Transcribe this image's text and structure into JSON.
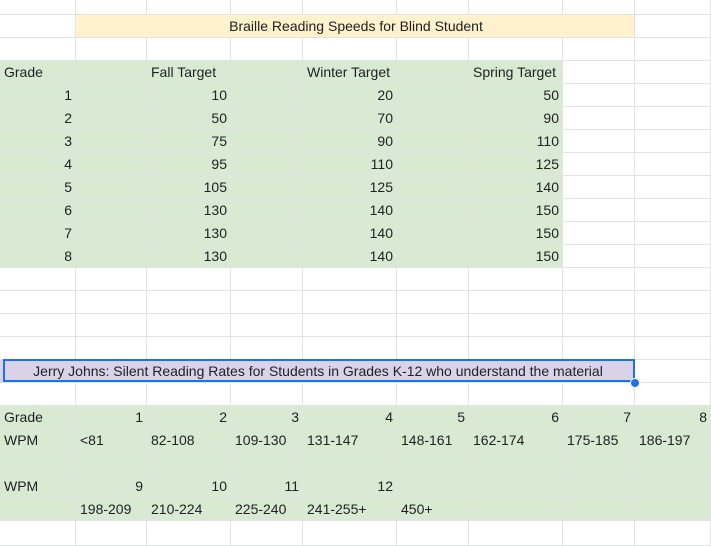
{
  "title1": "Braille Reading Speeds for Blind Student",
  "braille": {
    "headers": {
      "grade": "Grade",
      "fall": "Fall Target",
      "winter": "Winter Target",
      "spring": "Spring Target"
    },
    "rows": [
      {
        "grade": "1",
        "fall": "10",
        "winter": "20",
        "spring": "50"
      },
      {
        "grade": "2",
        "fall": "50",
        "winter": "70",
        "spring": "90"
      },
      {
        "grade": "3",
        "fall": "75",
        "winter": "90",
        "spring": "110"
      },
      {
        "grade": "4",
        "fall": "95",
        "winter": "110",
        "spring": "125"
      },
      {
        "grade": "5",
        "fall": "105",
        "winter": "125",
        "spring": "140"
      },
      {
        "grade": "6",
        "fall": "130",
        "winter": "140",
        "spring": "150"
      },
      {
        "grade": "7",
        "fall": "130",
        "winter": "140",
        "spring": "150"
      },
      {
        "grade": "8",
        "fall": "130",
        "winter": "140",
        "spring": "150"
      }
    ]
  },
  "title2": "Jerry Johns: Silent Reading Rates for Students in Grades K-12 who understand the material",
  "johns": {
    "row1": {
      "label": "Grade",
      "values": [
        "1",
        "2",
        "3",
        "4",
        "5",
        "6",
        "7",
        "8"
      ]
    },
    "row2": {
      "label": "WPM",
      "values": [
        "<81",
        "82-108",
        "109-130",
        "131-147",
        "148-161",
        "162-174",
        "175-185",
        "186-197"
      ]
    },
    "row3": {
      "label": "WPM",
      "values": [
        "9",
        "10",
        "11",
        "12"
      ]
    },
    "row4": {
      "values": [
        "198-209",
        "210-224",
        "225-240",
        "241-255+",
        "450+"
      ]
    }
  },
  "colors": {
    "green": "#d9ead3",
    "yellow": "#fff2cc",
    "lavender": "#d9d2e9",
    "selection": "#1a73e8"
  }
}
